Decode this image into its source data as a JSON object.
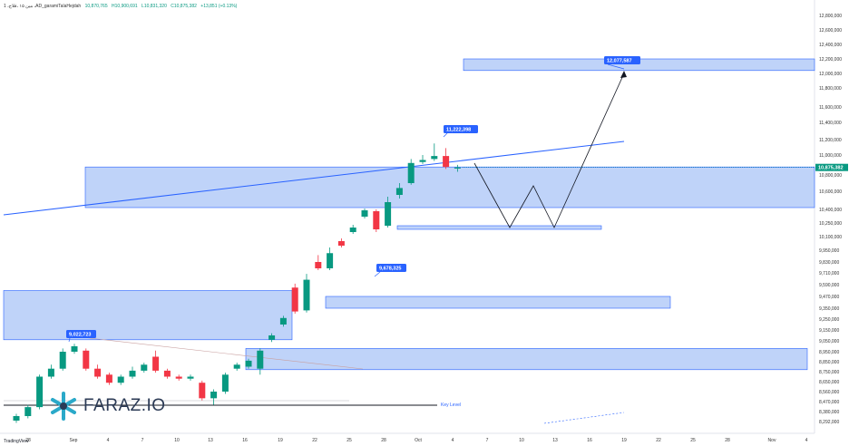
{
  "header": {
    "symbol": "1 ،مین ۱۵ ،فلاح ،AD_garamiTalaHejdah",
    "open": "10,870,765",
    "high": "H10,900,691",
    "low": "L10,831,320",
    "close": "C10,875,382",
    "change": "+13,851 (+0.13%)"
  },
  "colors": {
    "up": "#089981",
    "down": "#f23645",
    "zone_fill": "#a9c4f7",
    "zone_border": "#2962ff",
    "callout": "#2962ff",
    "price_label": "#089981"
  },
  "logo": {
    "text": "FARAZ.IO",
    "icon": "faraz-snowflake-icon"
  },
  "tv_mark": "TradingView",
  "key_level_label": "Key Level",
  "chart_data": {
    "type": "candlestick",
    "y_axis": {
      "ticks": [
        "12,800,000",
        "12,600,000",
        "12,400,000",
        "12,200,000",
        "12,000,000",
        "11,800,000",
        "11,600,000",
        "11,400,000",
        "11,200,000",
        "11,000,000",
        "10,800,000",
        "10,600,000",
        "10,400,000",
        "10,250,000",
        "10,100,000",
        "9,950,000",
        "9,830,000",
        "9,710,000",
        "9,590,000",
        "9,470,000",
        "9,350,000",
        "9,250,000",
        "9,150,000",
        "9,050,000",
        "8,950,000",
        "8,850,000",
        "8,750,000",
        "8,650,000",
        "8,560,000",
        "8,470,000",
        "8,380,000",
        "8,292,000"
      ],
      "current_price_label": "10,875,382"
    },
    "x_axis": {
      "ticks": [
        "28",
        "Sep",
        "4",
        "7",
        "10",
        "13",
        "16",
        "19",
        "22",
        "25",
        "28",
        "Oct",
        "4",
        "7",
        "10",
        "13",
        "16",
        "19",
        "22",
        "25",
        "28",
        "Nov",
        "4"
      ]
    },
    "candles": [
      {
        "o": 8300000,
        "c": 8340000,
        "h": 8360000,
        "l": 8280000
      },
      {
        "o": 8340000,
        "c": 8420000,
        "h": 8440000,
        "l": 8320000
      },
      {
        "o": 8420000,
        "c": 8700000,
        "h": 8720000,
        "l": 8400000
      },
      {
        "o": 8700000,
        "c": 8780000,
        "h": 8820000,
        "l": 8680000
      },
      {
        "o": 8780000,
        "c": 8950000,
        "h": 8980000,
        "l": 8760000
      },
      {
        "o": 8950000,
        "c": 9000000,
        "h": 9022723,
        "l": 8930000
      },
      {
        "o": 8960000,
        "c": 8780000,
        "h": 8980000,
        "l": 8760000
      },
      {
        "o": 8780000,
        "c": 8700000,
        "h": 8820000,
        "l": 8680000
      },
      {
        "o": 8720000,
        "c": 8640000,
        "h": 8740000,
        "l": 8620000
      },
      {
        "o": 8640000,
        "c": 8700000,
        "h": 8720000,
        "l": 8620000
      },
      {
        "o": 8700000,
        "c": 8760000,
        "h": 8800000,
        "l": 8680000
      },
      {
        "o": 8760000,
        "c": 8820000,
        "h": 8840000,
        "l": 8740000
      },
      {
        "o": 8900000,
        "c": 8760000,
        "h": 8960000,
        "l": 8740000
      },
      {
        "o": 8760000,
        "c": 8700000,
        "h": 8780000,
        "l": 8680000
      },
      {
        "o": 8700000,
        "c": 8680000,
        "h": 8720000,
        "l": 8660000
      },
      {
        "o": 8680000,
        "c": 8700000,
        "h": 8720000,
        "l": 8660000
      },
      {
        "o": 8640000,
        "c": 8500000,
        "h": 8660000,
        "l": 8480000
      },
      {
        "o": 8500000,
        "c": 8560000,
        "h": 8580000,
        "l": 8440000
      },
      {
        "o": 8560000,
        "c": 8720000,
        "h": 8740000,
        "l": 8540000
      },
      {
        "o": 8780000,
        "c": 8820000,
        "h": 8840000,
        "l": 8760000
      },
      {
        "o": 8800000,
        "c": 8860000,
        "h": 8880000,
        "l": 8780000
      },
      {
        "o": 8780000,
        "c": 8960000,
        "h": 8980000,
        "l": 8720000
      },
      {
        "o": 9060000,
        "c": 9100000,
        "h": 9120000,
        "l": 9040000
      },
      {
        "o": 9200000,
        "c": 9260000,
        "h": 9280000,
        "l": 9180000
      },
      {
        "o": 9560000,
        "c": 9320000,
        "h": 9600000,
        "l": 9300000
      },
      {
        "o": 9330000,
        "c": 9640000,
        "h": 9700000,
        "l": 9310000
      },
      {
        "o": 9830000,
        "c": 9760000,
        "h": 9900000,
        "l": 9740000
      },
      {
        "o": 9760000,
        "c": 9920000,
        "h": 9980000,
        "l": 9740000
      },
      {
        "o": 10050000,
        "c": 10000000,
        "h": 10080000,
        "l": 9980000
      },
      {
        "o": 10150000,
        "c": 10200000,
        "h": 10230000,
        "l": 10130000
      },
      {
        "o": 10320000,
        "c": 10390000,
        "h": 10410000,
        "l": 10300000
      },
      {
        "o": 10380000,
        "c": 10180000,
        "h": 10400000,
        "l": 10150000
      },
      {
        "o": 10220000,
        "c": 10480000,
        "h": 10540000,
        "l": 10200000
      },
      {
        "o": 10560000,
        "c": 10640000,
        "h": 10700000,
        "l": 10520000
      },
      {
        "o": 10700000,
        "c": 10920000,
        "h": 10960000,
        "l": 10680000
      },
      {
        "o": 10930000,
        "c": 10950000,
        "h": 11000000,
        "l": 10910000
      },
      {
        "o": 10960000,
        "c": 10990000,
        "h": 11150000,
        "l": 10940000
      },
      {
        "o": 10990000,
        "c": 10880000,
        "h": 11090000,
        "l": 10860000
      },
      {
        "o": 10870765,
        "c": 10875382,
        "h": 10900691,
        "l": 10831320
      }
    ],
    "zones": [
      {
        "name": "upper-target-zone",
        "y_top": 12200000,
        "y_bottom": 12040000
      },
      {
        "name": "main-supply-zone",
        "y_top": 10880000,
        "y_bottom": 10420000
      },
      {
        "name": "thin-support-zone",
        "y_top": 10220000,
        "y_bottom": 10180000
      },
      {
        "name": "mid-support-zone",
        "y_top": 9470000,
        "y_bottom": 9350000
      },
      {
        "name": "left-upper-zone",
        "y_top": 9530000,
        "y_bottom": 9060000
      },
      {
        "name": "lower-demand-zone",
        "y_top": 8980000,
        "y_bottom": 8770000
      }
    ],
    "annotations": [
      {
        "label": "12,077,587",
        "kind": "price-callout"
      },
      {
        "label": "11,222,398",
        "kind": "price-callout"
      },
      {
        "label": "9,678,325",
        "kind": "price-callout"
      },
      {
        "label": "9,022,723",
        "kind": "price-callout"
      }
    ]
  }
}
